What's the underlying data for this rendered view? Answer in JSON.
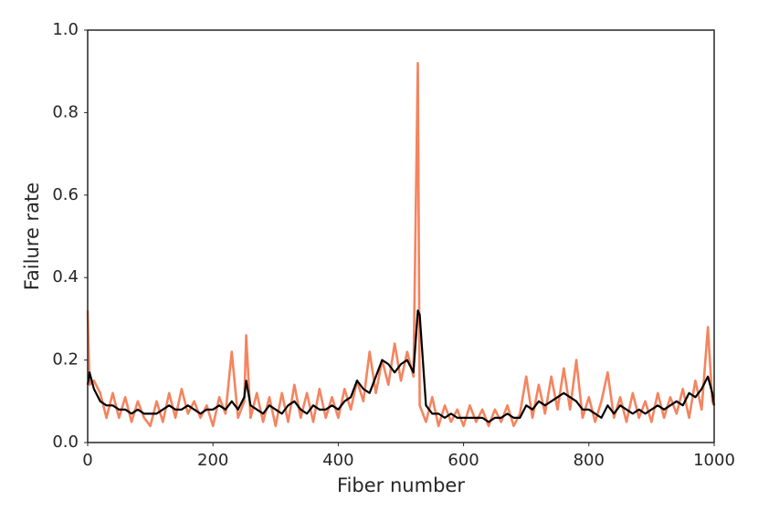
{
  "chart_data": {
    "type": "line",
    "x_label": "Fiber number",
    "y_label": "Failure rate",
    "x": [
      0,
      3,
      10,
      20,
      30,
      40,
      50,
      60,
      70,
      80,
      90,
      100,
      110,
      120,
      130,
      140,
      150,
      160,
      170,
      180,
      190,
      200,
      210,
      220,
      230,
      240,
      250,
      253,
      260,
      270,
      280,
      290,
      300,
      310,
      320,
      330,
      340,
      350,
      360,
      370,
      380,
      390,
      400,
      410,
      420,
      430,
      440,
      450,
      460,
      470,
      480,
      490,
      500,
      510,
      520,
      527,
      530,
      540,
      550,
      560,
      570,
      580,
      590,
      600,
      610,
      620,
      630,
      640,
      650,
      660,
      670,
      680,
      690,
      700,
      710,
      720,
      730,
      740,
      750,
      760,
      770,
      780,
      790,
      800,
      810,
      820,
      830,
      840,
      850,
      860,
      870,
      880,
      890,
      900,
      910,
      920,
      930,
      940,
      950,
      960,
      970,
      980,
      990,
      997,
      1000
    ],
    "series": [
      {
        "color": "#f4845f",
        "values": [
          0.32,
          0.14,
          0.15,
          0.12,
          0.06,
          0.12,
          0.06,
          0.11,
          0.05,
          0.1,
          0.06,
          0.04,
          0.1,
          0.05,
          0.12,
          0.06,
          0.13,
          0.07,
          0.1,
          0.06,
          0.09,
          0.04,
          0.11,
          0.07,
          0.22,
          0.06,
          0.1,
          0.26,
          0.06,
          0.12,
          0.05,
          0.11,
          0.04,
          0.12,
          0.05,
          0.14,
          0.06,
          0.12,
          0.05,
          0.13,
          0.06,
          0.11,
          0.06,
          0.13,
          0.08,
          0.15,
          0.1,
          0.22,
          0.12,
          0.2,
          0.14,
          0.24,
          0.15,
          0.22,
          0.16,
          0.92,
          0.09,
          0.05,
          0.11,
          0.04,
          0.09,
          0.05,
          0.08,
          0.04,
          0.09,
          0.05,
          0.08,
          0.04,
          0.08,
          0.05,
          0.09,
          0.04,
          0.07,
          0.16,
          0.06,
          0.14,
          0.07,
          0.16,
          0.08,
          0.18,
          0.08,
          0.2,
          0.06,
          0.11,
          0.05,
          0.1,
          0.17,
          0.06,
          0.11,
          0.05,
          0.12,
          0.06,
          0.1,
          0.05,
          0.12,
          0.06,
          0.11,
          0.07,
          0.13,
          0.06,
          0.15,
          0.08,
          0.28,
          0.1,
          0.09
        ]
      },
      {
        "color": "#000000",
        "values": [
          0.14,
          0.17,
          0.13,
          0.1,
          0.09,
          0.09,
          0.08,
          0.08,
          0.07,
          0.08,
          0.07,
          0.07,
          0.07,
          0.08,
          0.09,
          0.08,
          0.08,
          0.09,
          0.08,
          0.07,
          0.08,
          0.08,
          0.09,
          0.08,
          0.1,
          0.08,
          0.11,
          0.15,
          0.09,
          0.08,
          0.07,
          0.09,
          0.08,
          0.07,
          0.09,
          0.1,
          0.08,
          0.07,
          0.09,
          0.08,
          0.08,
          0.09,
          0.08,
          0.1,
          0.11,
          0.15,
          0.13,
          0.12,
          0.16,
          0.2,
          0.19,
          0.17,
          0.19,
          0.2,
          0.17,
          0.32,
          0.31,
          0.09,
          0.07,
          0.07,
          0.06,
          0.07,
          0.06,
          0.06,
          0.06,
          0.06,
          0.06,
          0.05,
          0.06,
          0.06,
          0.07,
          0.06,
          0.06,
          0.09,
          0.08,
          0.1,
          0.09,
          0.1,
          0.11,
          0.12,
          0.11,
          0.1,
          0.08,
          0.08,
          0.07,
          0.06,
          0.09,
          0.07,
          0.09,
          0.08,
          0.07,
          0.08,
          0.07,
          0.08,
          0.09,
          0.08,
          0.09,
          0.1,
          0.09,
          0.12,
          0.11,
          0.13,
          0.16,
          0.12,
          0.09
        ]
      }
    ],
    "xlim": [
      0,
      1000
    ],
    "xticks": [
      0,
      200,
      400,
      600,
      800,
      1000
    ],
    "ylim": [
      0,
      1
    ],
    "yticks": [
      {
        "value": 0,
        "label": "0.0"
      },
      0.2,
      0.4,
      0.6,
      0.8,
      {
        "value": 1,
        "label": "1.0"
      }
    ],
    "grid": false
  }
}
